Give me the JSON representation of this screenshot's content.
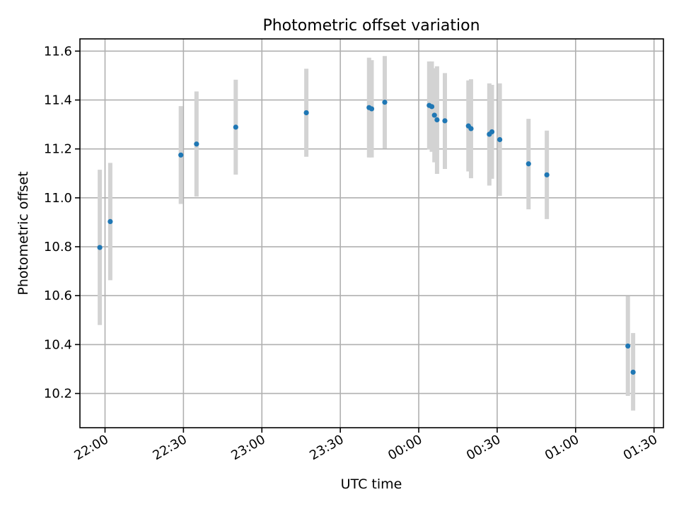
{
  "chart_data": {
    "type": "scatter",
    "title": "Photometric offset variation",
    "xlabel": "UTC time",
    "ylabel": "Photometric offset",
    "x_axis": {
      "kind": "time",
      "tick_labels": [
        "22:00",
        "22:30",
        "23:00",
        "23:30",
        "00:00",
        "00:30",
        "01:00",
        "01:30"
      ],
      "tick_hours": [
        22.0,
        22.5,
        23.0,
        23.5,
        24.0,
        24.5,
        25.0,
        25.5
      ],
      "range_hours": [
        21.84,
        25.56
      ]
    },
    "y_axis": {
      "tick_labels": [
        "10.2",
        "10.4",
        "10.6",
        "10.8",
        "11.0",
        "11.2",
        "11.4",
        "11.6"
      ],
      "ticks": [
        10.2,
        10.4,
        10.6,
        10.8,
        11.0,
        11.2,
        11.4,
        11.6
      ],
      "ylim": [
        10.06,
        11.65
      ]
    },
    "grid": true,
    "colors": {
      "points": "#1f77b4",
      "errorbars": "#d3d3d3"
    },
    "points": [
      {
        "time": "21:58",
        "y": 10.797,
        "lo": 10.48,
        "hi": 11.115
      },
      {
        "time": "22:02",
        "y": 10.903,
        "lo": 10.663,
        "hi": 11.143
      },
      {
        "time": "22:29",
        "y": 11.175,
        "lo": 10.975,
        "hi": 11.375
      },
      {
        "time": "22:35",
        "y": 11.22,
        "lo": 11.005,
        "hi": 11.435
      },
      {
        "time": "22:50",
        "y": 11.289,
        "lo": 11.095,
        "hi": 11.483
      },
      {
        "time": "23:17",
        "y": 11.348,
        "lo": 11.168,
        "hi": 11.528
      },
      {
        "time": "23:41",
        "y": 11.369,
        "lo": 11.165,
        "hi": 11.573
      },
      {
        "time": "23:42",
        "y": 11.364,
        "lo": 11.165,
        "hi": 11.563
      },
      {
        "time": "23:47",
        "y": 11.391,
        "lo": 11.202,
        "hi": 11.58
      },
      {
        "time": "00:04",
        "y": 11.378,
        "lo": 11.198,
        "hi": 11.558
      },
      {
        "time": "00:05",
        "y": 11.373,
        "lo": 11.188,
        "hi": 11.558
      },
      {
        "time": "00:06",
        "y": 11.338,
        "lo": 11.145,
        "hi": 11.53
      },
      {
        "time": "00:07",
        "y": 11.319,
        "lo": 11.098,
        "hi": 11.538
      },
      {
        "time": "00:10",
        "y": 11.315,
        "lo": 11.118,
        "hi": 11.51
      },
      {
        "time": "00:19",
        "y": 11.294,
        "lo": 11.108,
        "hi": 11.48
      },
      {
        "time": "00:20",
        "y": 11.283,
        "lo": 11.08,
        "hi": 11.485
      },
      {
        "time": "00:27",
        "y": 11.26,
        "lo": 11.05,
        "hi": 11.468
      },
      {
        "time": "00:28",
        "y": 11.27,
        "lo": 11.078,
        "hi": 11.462
      },
      {
        "time": "00:31",
        "y": 11.238,
        "lo": 11.008,
        "hi": 11.468
      },
      {
        "time": "00:42",
        "y": 11.139,
        "lo": 10.953,
        "hi": 11.323
      },
      {
        "time": "00:49",
        "y": 11.094,
        "lo": 10.913,
        "hi": 11.275
      },
      {
        "time": "01:20",
        "y": 10.394,
        "lo": 10.19,
        "hi": 10.598
      },
      {
        "time": "01:22",
        "y": 10.287,
        "lo": 10.13,
        "hi": 10.447
      }
    ]
  }
}
